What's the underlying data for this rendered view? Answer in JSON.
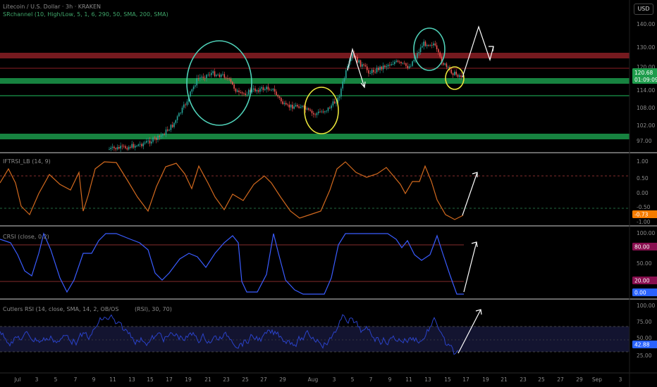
{
  "header": {
    "title": "Litecoin / U.S. Dollar · 3h · KRAKEN",
    "indicator": "SRchannel (10, High/Low, 5, 1, 6, 290, 50, SMA, 200, SMA)",
    "currency": "USD"
  },
  "panels": {
    "price": {
      "axis_ticks": [
        "140.00",
        "130.00",
        "120.00",
        "114.00",
        "108.00",
        "102.00",
        "97.00"
      ],
      "last_price": "120.68",
      "countdown": "01:09:09"
    },
    "osc1": {
      "legend": "IFTRSI_LB (14, 9)",
      "axis_ticks": [
        "1.00",
        "0.50",
        "0.00",
        "-0.50",
        "-1.00"
      ],
      "last_value": "-0.73"
    },
    "osc2": {
      "legend": "CRSI (close, 0.2)",
      "axis_ticks": [
        "100.00",
        "50.00"
      ],
      "upper_value": "80.00",
      "lower_value": "20.00",
      "last_value": "0.00"
    },
    "osc3": {
      "legend": "Cutlers RSI (14, close, SMA, 14, 2, OB/OS",
      "legend_extra": "(RSI), 30, 70)",
      "axis_ticks": [
        "100.00",
        "75.00",
        "50.00",
        "25.00"
      ],
      "last_value": "42.88"
    }
  },
  "date_axis": [
    "Jul",
    "3",
    "5",
    "7",
    "9",
    "11",
    "13",
    "15",
    "17",
    "19",
    "21",
    "23",
    "25",
    "27",
    "29",
    "Aug",
    "3",
    "5",
    "7",
    "9",
    "11",
    "13",
    "15",
    "17",
    "19",
    "21",
    "23",
    "25",
    "27",
    "29",
    "Sep",
    "3"
  ],
  "colors": {
    "background": "#000000",
    "candle_up": "#26a69a",
    "candle_down": "#ef5350",
    "support_zone": "#1b9a4b",
    "resistance_zone": "#8b1e24",
    "circle_teal": "#4fd1b8",
    "circle_yellow": "#e8e33a",
    "iftrsi_line": "#d2691e",
    "crsi_line": "#3a5cff",
    "cutler_line": "#2a42c9",
    "badge_blue": "#2962ff",
    "badge_orange": "#f57c00",
    "badge_maroon": "#880e4f",
    "badge_green": "#1e9c4c"
  },
  "annotations": {
    "circles": [
      "teal-ellipse-jul-19",
      "yellow-ellipse-aug-1",
      "teal-ellipse-aug-13",
      "yellow-ellipse-aug-15"
    ],
    "projection": "white-zigzag-arrow-up"
  }
}
